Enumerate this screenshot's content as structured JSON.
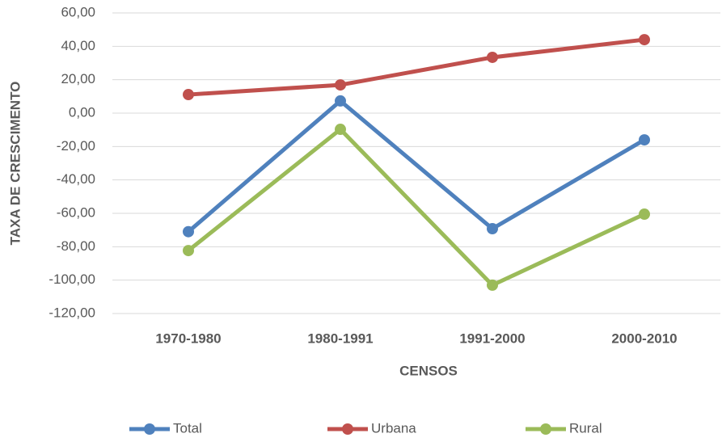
{
  "chart_data": {
    "type": "line",
    "xlabel": "CENSOS",
    "ylabel": "TAXA DE CRESCIMENTO",
    "categories": [
      "1970-1980",
      "1980-1991",
      "1991-2000",
      "2000-2010"
    ],
    "series": [
      {
        "name": "Total",
        "color": "#4f81bd",
        "values": [
          -71,
          7.3,
          -69.2,
          -16
        ]
      },
      {
        "name": "Urbana",
        "color": "#c0504d",
        "values": [
          11.1,
          16.9,
          33.4,
          44
        ]
      },
      {
        "name": "Rural",
        "color": "#9bbb59",
        "values": [
          -82.3,
          -9.7,
          -103,
          -60.5
        ]
      }
    ],
    "ylim": [
      -120,
      60
    ],
    "yticks": [
      {
        "value": -120,
        "label": "-120,00"
      },
      {
        "value": -100,
        "label": "-100,00"
      },
      {
        "value": -80,
        "label": "-80,00"
      },
      {
        "value": -60,
        "label": "-60,00"
      },
      {
        "value": -40,
        "label": "-40,00"
      },
      {
        "value": -20,
        "label": "-20,00"
      },
      {
        "value": 0,
        "label": "0,00"
      },
      {
        "value": 20,
        "label": "20,00"
      },
      {
        "value": 40,
        "label": "40,00"
      },
      {
        "value": 60,
        "label": "60,00"
      }
    ],
    "grid": true,
    "legend": "bottom"
  }
}
